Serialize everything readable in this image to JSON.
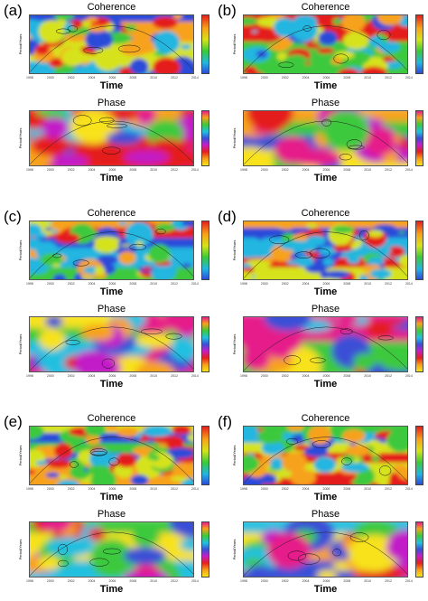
{
  "figure": {
    "panels": [
      {
        "label": "(a)",
        "coherence_title": "Coherence",
        "phase_title": "Phase",
        "xlabel": "Time"
      },
      {
        "label": "(b)",
        "coherence_title": "Coherence",
        "phase_title": "Phase",
        "xlabel": "Time"
      },
      {
        "label": "(c)",
        "coherence_title": "Coherence",
        "phase_title": "Phase",
        "xlabel": "Time"
      },
      {
        "label": "(d)",
        "coherence_title": "Coherence",
        "phase_title": "Phase",
        "xlabel": "Time"
      },
      {
        "label": "(e)",
        "coherence_title": "Coherence",
        "phase_title": "Phase",
        "xlabel": "Time"
      },
      {
        "label": "(f)",
        "coherence_title": "Coherence",
        "phase_title": "Phase",
        "xlabel": "Time"
      }
    ],
    "coherence_ylabel": "Period/Years",
    "phase_ylabel": "Period/Years"
  },
  "chart_data": [
    {
      "type": "heatmap",
      "panel": "(a)",
      "subplots": [
        {
          "title": "Coherence",
          "xlabel": "Time",
          "ylabel": "Period/Years",
          "xlim": [
            1998,
            2014
          ],
          "x_ticks": [
            "1998",
            "2000",
            "2002",
            "2004",
            "2006",
            "2008",
            "2010",
            "2012",
            "2014"
          ],
          "colorscale": [
            "#2b4bd9",
            "#22b6e0",
            "#3cc93c",
            "#d6e31a",
            "#f7a21a",
            "#e51f1f"
          ]
        },
        {
          "title": "Phase",
          "xlabel": "Time",
          "ylabel": "Period/Years",
          "xlim": [
            1998,
            2014
          ],
          "x_ticks": [
            "1998",
            "2000",
            "2002",
            "2004",
            "2006",
            "2008",
            "2010",
            "2012",
            "2014"
          ],
          "colorscale": [
            "#f7e21a",
            "#e51f1f",
            "#c21ec8",
            "#3a4fd6",
            "#22c0e0",
            "#3cc93c",
            "#e51f8a"
          ]
        }
      ]
    },
    {
      "type": "heatmap",
      "panel": "(b)",
      "subplots": [
        {
          "title": "Coherence",
          "xlabel": "Time",
          "ylabel": "Period/Years",
          "xlim": [
            1998,
            2014
          ]
        },
        {
          "title": "Phase",
          "xlabel": "Time",
          "ylabel": "Period/Years",
          "xlim": [
            1998,
            2014
          ]
        }
      ]
    },
    {
      "type": "heatmap",
      "panel": "(c)",
      "subplots": [
        {
          "title": "Coherence",
          "xlabel": "Time",
          "ylabel": "Period/Years",
          "xlim": [
            1998,
            2014
          ]
        },
        {
          "title": "Phase",
          "xlabel": "Time",
          "ylabel": "Period/Years",
          "xlim": [
            1998,
            2014
          ]
        }
      ]
    },
    {
      "type": "heatmap",
      "panel": "(d)",
      "subplots": [
        {
          "title": "Coherence",
          "xlabel": "Time",
          "ylabel": "Period/Years",
          "xlim": [
            1998,
            2014
          ]
        },
        {
          "title": "Phase",
          "xlabel": "Time",
          "ylabel": "Period/Years",
          "xlim": [
            1998,
            2014
          ]
        }
      ]
    },
    {
      "type": "heatmap",
      "panel": "(e)",
      "subplots": [
        {
          "title": "Coherence",
          "xlabel": "Time",
          "ylabel": "Period/Years",
          "xlim": [
            1998,
            2014
          ]
        },
        {
          "title": "Phase",
          "xlabel": "Time",
          "ylabel": "Period/Years",
          "xlim": [
            1998,
            2014
          ]
        }
      ]
    },
    {
      "type": "heatmap",
      "panel": "(f)",
      "subplots": [
        {
          "title": "Coherence",
          "xlabel": "Time",
          "ylabel": "Period/Years",
          "xlim": [
            1998,
            2014
          ]
        },
        {
          "title": "Phase",
          "xlabel": "Time",
          "ylabel": "Period/Years",
          "xlim": [
            1998,
            2014
          ]
        }
      ]
    }
  ]
}
